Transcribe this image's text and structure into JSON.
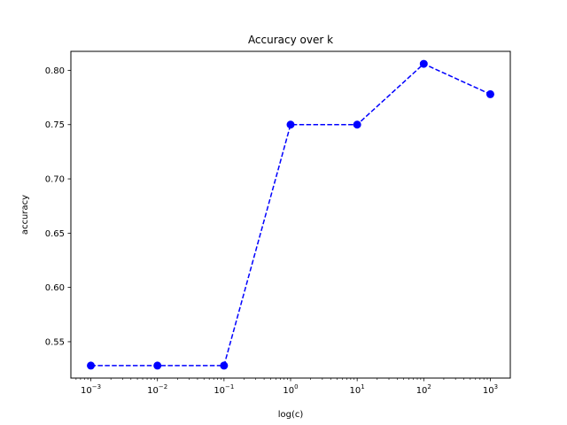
{
  "chart_data": {
    "type": "line",
    "title": "Accuracy over k",
    "xlabel": "log(c)",
    "ylabel": "accuracy",
    "x_scale": "log",
    "x": [
      0.001,
      0.01,
      0.1,
      1,
      10,
      100,
      1000
    ],
    "x_tick_labels": [
      {
        "base": "10",
        "exp": "−3"
      },
      {
        "base": "10",
        "exp": "−2"
      },
      {
        "base": "10",
        "exp": "−1"
      },
      {
        "base": "10",
        "exp": "0"
      },
      {
        "base": "10",
        "exp": "1"
      },
      {
        "base": "10",
        "exp": "2"
      },
      {
        "base": "10",
        "exp": "3"
      }
    ],
    "y_ticks": [
      0.55,
      0.6,
      0.65,
      0.7,
      0.75,
      0.8
    ],
    "y_tick_labels": [
      "0.55",
      "0.60",
      "0.65",
      "0.70",
      "0.75",
      "0.80"
    ],
    "ylim": [
      0.5165,
      0.8175
    ],
    "xlim_log10": [
      -3.3,
      3.3
    ],
    "grid": false,
    "series": [
      {
        "color": "#0000ff",
        "line_style": "dashed",
        "marker": "circle",
        "values": [
          0.528,
          0.528,
          0.528,
          0.75,
          0.75,
          0.806,
          0.778
        ]
      }
    ]
  }
}
